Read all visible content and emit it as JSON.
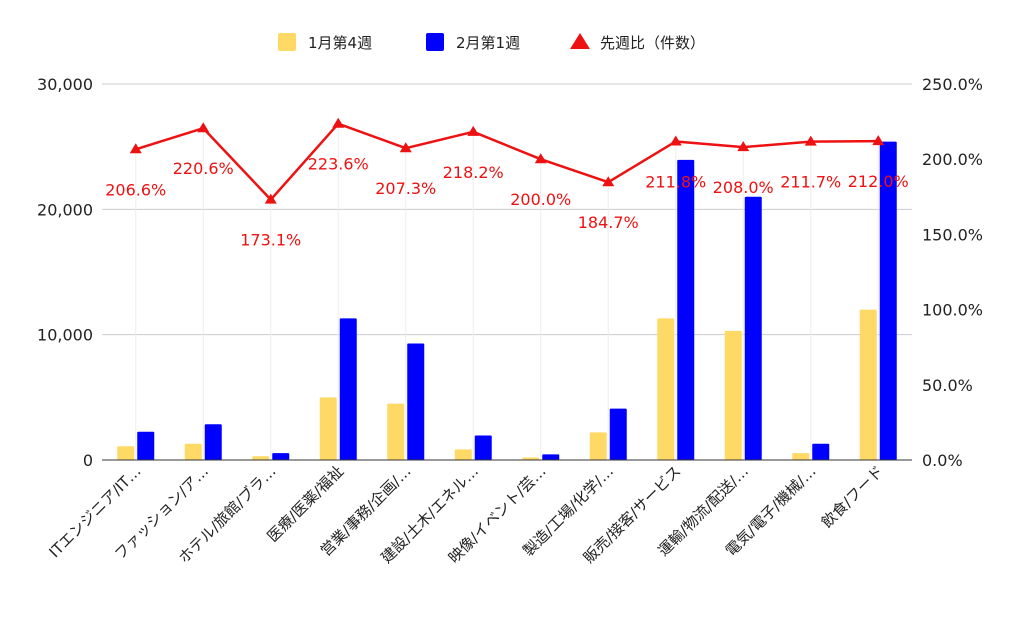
{
  "chart_data": {
    "type": "bar",
    "categories": [
      "ITエンジニア/IT…",
      "ファッション/ア…",
      "ホテル/旅館/ブラ…",
      "医療/医薬/福祉",
      "営業/事務/企画/…",
      "建設/土木/エネル…",
      "映像/イベント/芸…",
      "製造/工場/化学/…",
      "販売/接客/サービス",
      "運輸/物流/配送/…",
      "電気/電子/機械/…",
      "飲食/フード"
    ],
    "series": [
      {
        "name": "1月第4週",
        "type": "bar",
        "axis": "left",
        "color": "#ffd966",
        "values": [
          1100,
          1300,
          300,
          5000,
          4500,
          850,
          200,
          2200,
          11300,
          10300,
          550,
          12000
        ]
      },
      {
        "name": "2月第1週",
        "type": "bar",
        "axis": "left",
        "color": "#0000ff",
        "values": [
          2250,
          2850,
          550,
          11300,
          9300,
          1950,
          450,
          4100,
          23950,
          21000,
          1300,
          25400
        ]
      },
      {
        "name": "先週比（件数）",
        "type": "line",
        "axis": "right",
        "color": "#ee1111",
        "marker": "triangle",
        "values": [
          206.6,
          220.6,
          173.1,
          223.6,
          207.3,
          218.2,
          200.0,
          184.7,
          211.8,
          208.0,
          211.7,
          212.0
        ],
        "labels": [
          "206.6%",
          "220.6%",
          "173.1%",
          "223.6%",
          "207.3%",
          "218.2%",
          "200.0%",
          "184.7%",
          "211.8%",
          "208.0%",
          "211.7%",
          "212.0%"
        ]
      }
    ],
    "y_left": {
      "ylim": [
        0,
        30000
      ],
      "ticks": [
        "0",
        "10,000",
        "20,000",
        "30,000"
      ]
    },
    "y_right": {
      "ylim": [
        0,
        250
      ],
      "ticks": [
        "0.0%",
        "50.0%",
        "100.0%",
        "150.0%",
        "200.0%",
        "250.0%"
      ]
    },
    "legend_position": "top",
    "grid": true
  }
}
